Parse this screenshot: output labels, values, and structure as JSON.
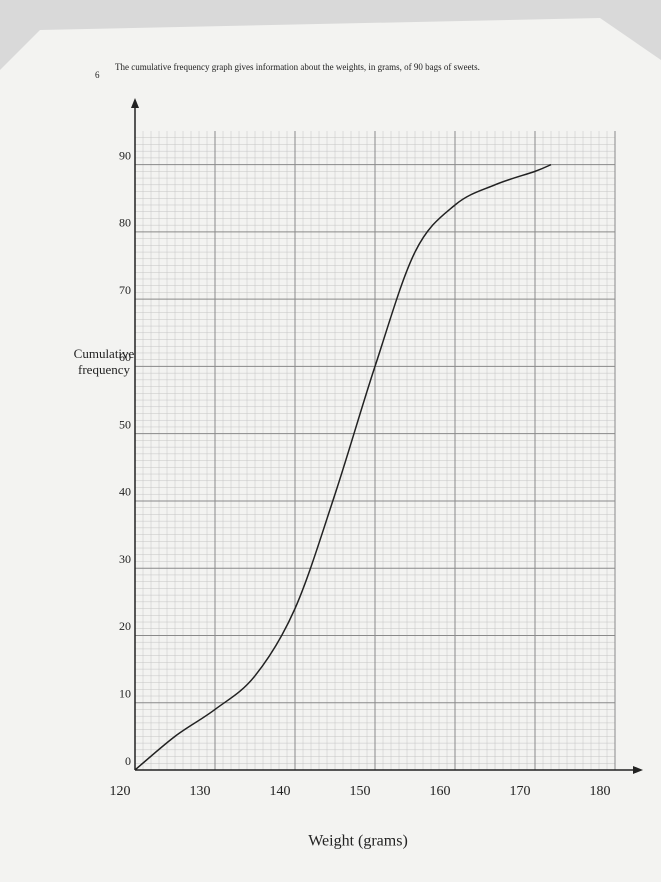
{
  "chart_data": {
    "type": "line",
    "question_number": "6",
    "title": "The cumulative frequency graph gives information about the weights, in grams, of 90 bags of sweets.",
    "x_label": "Weight (grams)",
    "y_label": "Cumulative frequency",
    "x": [
      120,
      125,
      130,
      135,
      140,
      145,
      150,
      155,
      160,
      165,
      170,
      172
    ],
    "series": [
      {
        "name": "Cumulative frequency",
        "color": "#222222",
        "values": [
          0,
          5,
          9,
          14,
          24,
          41,
          60,
          77,
          84,
          87,
          89,
          90
        ]
      }
    ],
    "xlim": [
      120,
      180
    ],
    "xticks": [
      120,
      130,
      140,
      150,
      160,
      170,
      180
    ],
    "ylim": [
      0,
      95
    ],
    "yticks": [
      0,
      10,
      20,
      30,
      40,
      50,
      60,
      70,
      80,
      90
    ],
    "grid": true,
    "minor_grid": true
  }
}
